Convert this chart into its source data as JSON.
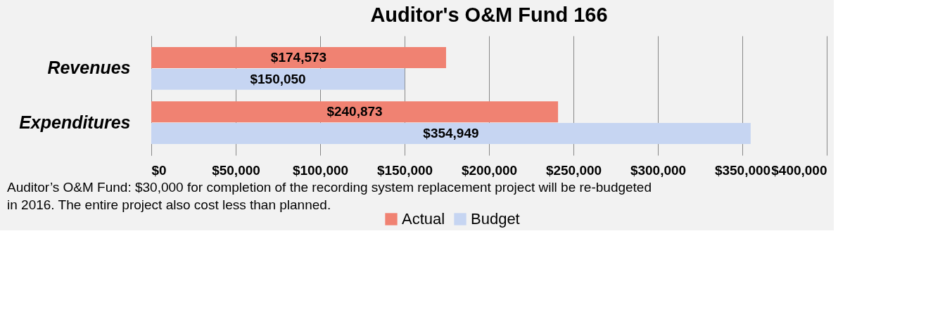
{
  "chart_data": {
    "type": "bar",
    "orientation": "horizontal",
    "title": "Auditor's O&M Fund 166",
    "categories": [
      "Revenues",
      "Expenditures"
    ],
    "series": [
      {
        "name": "Actual",
        "color": "#f08272",
        "values": [
          174573,
          240873
        ],
        "value_labels": [
          "$174,573",
          "$240,873"
        ]
      },
      {
        "name": "Budget",
        "color": "#c6d5f2",
        "values": [
          150050,
          354949
        ],
        "value_labels": [
          "$150,050",
          "$354,949"
        ]
      }
    ],
    "xlim": [
      0,
      400000
    ],
    "xticks": [
      {
        "value": 0,
        "label": "$0"
      },
      {
        "value": 50000,
        "label": "$50,000"
      },
      {
        "value": 100000,
        "label": "$100,000"
      },
      {
        "value": 150000,
        "label": "$150,000"
      },
      {
        "value": 200000,
        "label": "$200,000"
      },
      {
        "value": 250000,
        "label": "$250,000"
      },
      {
        "value": 300000,
        "label": "$300,000"
      },
      {
        "value": 350000,
        "label": "$350,000"
      },
      {
        "value": 400000,
        "label": "$400,000"
      }
    ],
    "grid": "x",
    "legend": "bottom",
    "annotations": [
      "Auditor’s O&M Fund:  $30,000 for completion of the recording system replacement project will be re-budgeted\nin 2016.  The entire project also cost less than planned."
    ]
  }
}
